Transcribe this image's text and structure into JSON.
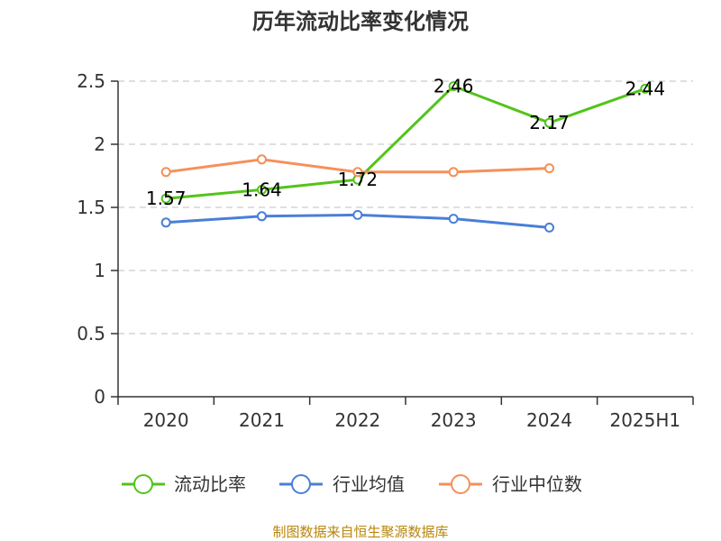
{
  "chart_data": {
    "type": "line",
    "title": "历年流动比率变化情况",
    "categories": [
      "2020",
      "2021",
      "2022",
      "2023",
      "2024",
      "2025H1"
    ],
    "yticks": [
      "0",
      "0.5",
      "1",
      "1.5",
      "2",
      "2.5"
    ],
    "ylim": [
      0,
      2.5
    ],
    "grid": true,
    "legend_position": "bottom",
    "series": [
      {
        "name": "流动比率",
        "color": "#52c41a",
        "labels": true,
        "values": [
          1.57,
          1.64,
          1.72,
          2.46,
          2.17,
          2.44
        ],
        "value_labels": [
          "1.57",
          "1.64",
          "1.72",
          "2.46",
          "2.17",
          "2.44"
        ]
      },
      {
        "name": "行业均值",
        "color": "#4a7fd8",
        "labels": false,
        "values": [
          1.38,
          1.43,
          1.44,
          1.41,
          1.34,
          null
        ]
      },
      {
        "name": "行业中位数",
        "color": "#f5905a",
        "labels": false,
        "values": [
          1.78,
          1.88,
          1.78,
          1.78,
          1.81,
          null
        ]
      }
    ]
  },
  "source": "制图数据来自恒生聚源数据库"
}
